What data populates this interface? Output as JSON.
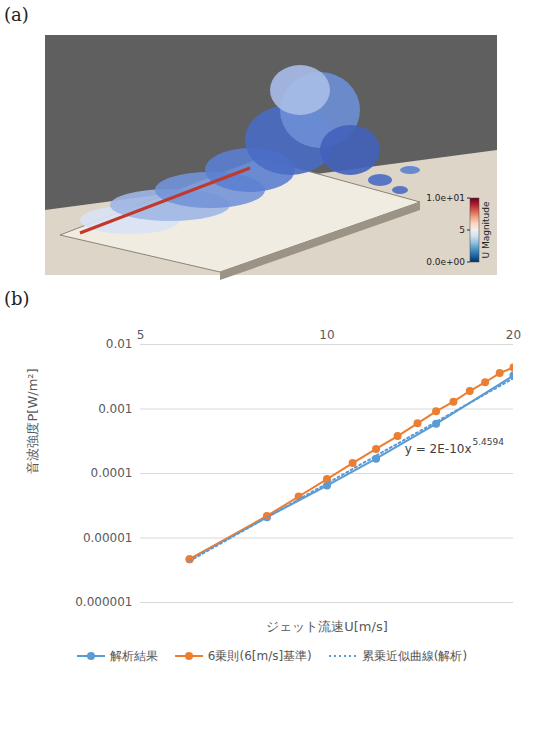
{
  "figure_a": {
    "label": "(a)",
    "colorbar": {
      "title": "U Magnitude",
      "range": [
        0,
        10
      ],
      "ticks": [
        {
          "value": 10,
          "label": "1.0e+01"
        },
        5,
        {
          "value": 0,
          "label": "0.0e+00"
        }
      ]
    }
  },
  "chart_data": {
    "panel_label": "(b)",
    "type": "line",
    "x_label": "ジェット流速U[m/s]",
    "y_label": "音波強度P[W/m²]",
    "log": true,
    "grid": true,
    "legend": "bottom",
    "xlim": [
      5,
      20
    ],
    "xticks": [
      5,
      10,
      20
    ],
    "ylim": [
      1e-06,
      0.01
    ],
    "yticks": [
      1e-06,
      1e-05,
      0.0001,
      0.001,
      0.01
    ],
    "annotations": [
      {
        "text": "y = 2E-10x",
        "superscript": "5.4594"
      }
    ],
    "series": [
      {
        "name": "解析結果",
        "color": "#5b9bd5",
        "marker": "circle",
        "line_style": "solid",
        "x": [
          6,
          8,
          10,
          12,
          15,
          20
        ],
        "values": [
          4.7e-06,
          2.1e-05,
          6.5e-05,
          0.00017,
          0.00059,
          0.0033
        ]
      },
      {
        "name": "6乗則(6[m/s]基準)",
        "color": "#ed7d31",
        "marker": "circle",
        "line_style": "solid",
        "x": [
          6,
          8,
          9,
          10,
          11,
          12,
          13,
          14,
          15,
          16,
          17,
          18,
          19,
          20
        ],
        "values": [
          4.7e-06,
          2.2e-05,
          4.4e-05,
          8.2e-05,
          0.000145,
          0.00024,
          0.00038,
          0.0006,
          0.00092,
          0.0013,
          0.0019,
          0.0026,
          0.0036,
          0.0044
        ]
      },
      {
        "name": "累乗近似曲線(解析)",
        "color": "#5b9bd5",
        "marker": "none",
        "line_style": "dotted",
        "x": [
          6,
          20
        ],
        "values": [
          4.4e-06,
          0.003
        ]
      }
    ]
  }
}
